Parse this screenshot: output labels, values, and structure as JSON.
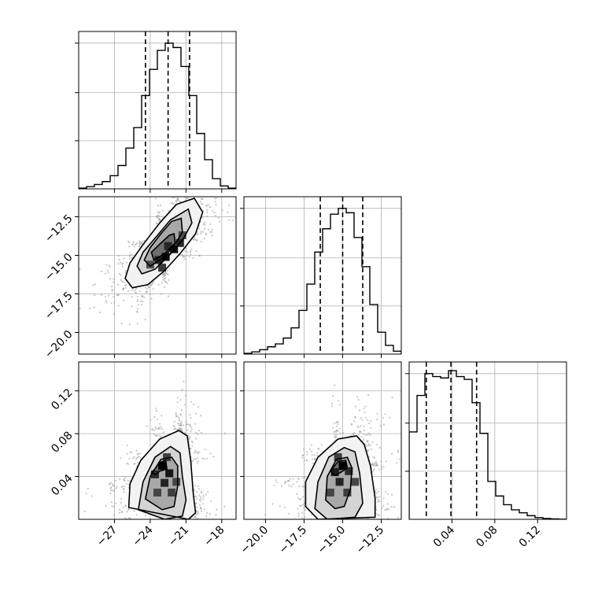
{
  "chart_data": {
    "type": "corner",
    "title": "",
    "parameters": [
      {
        "range": [
          -30,
          -16.8
        ],
        "ticks": [
          -27,
          -24,
          -21,
          -18
        ],
        "tick_labels": [
          "−27",
          "−24",
          "−21",
          "−18"
        ]
      },
      {
        "range": [
          -21.4,
          -11.2
        ],
        "ticks": [
          -20.0,
          -17.5,
          -15.0,
          -12.5
        ],
        "tick_labels": [
          "−20.0",
          "−17.5",
          "−15.0",
          "−12.5"
        ]
      },
      {
        "range": [
          0.0,
          0.147
        ],
        "ticks": [
          0.04,
          0.08,
          0.12
        ],
        "tick_labels": [
          "0.04",
          "0.08",
          "0.12"
        ]
      }
    ],
    "grid": true,
    "quantiles": [
      [
        -24.4,
        -22.5,
        -20.7
      ],
      [
        -16.45,
        -15.0,
        -13.7
      ],
      [
        0.016,
        0.039,
        0.063
      ]
    ],
    "histograms": [
      {
        "param": 0,
        "edges": [
          -30.0,
          -29.34,
          -28.68,
          -28.02,
          -27.36,
          -26.7,
          -26.04,
          -25.38,
          -24.72,
          -24.06,
          -23.4,
          -22.74,
          -22.08,
          -21.42,
          -20.76,
          -20.1,
          -19.44,
          -18.78,
          -18.12,
          -17.46,
          -16.8
        ],
        "counts": [
          0.005,
          0.015,
          0.03,
          0.05,
          0.09,
          0.16,
          0.28,
          0.42,
          0.64,
          0.82,
          0.95,
          1.0,
          0.97,
          0.84,
          0.64,
          0.38,
          0.2,
          0.07,
          0.02,
          0.005
        ]
      },
      {
        "param": 1,
        "edges": [
          -21.4,
          -20.89,
          -20.38,
          -19.87,
          -19.36,
          -18.85,
          -18.34,
          -17.83,
          -17.32,
          -16.81,
          -16.3,
          -15.79,
          -15.28,
          -14.77,
          -14.26,
          -13.75,
          -13.24,
          -12.73,
          -12.22,
          -11.71,
          -11.2
        ],
        "counts": [
          0.005,
          0.015,
          0.03,
          0.05,
          0.07,
          0.11,
          0.18,
          0.3,
          0.48,
          0.7,
          0.86,
          0.96,
          1.0,
          0.97,
          0.8,
          0.6,
          0.34,
          0.15,
          0.06,
          0.02
        ]
      },
      {
        "param": 2,
        "edges": [
          0.0,
          0.00735,
          0.0147,
          0.02205,
          0.0294,
          0.03675,
          0.0441,
          0.05145,
          0.0588,
          0.06615,
          0.0735,
          0.08085,
          0.0882,
          0.09555,
          0.1029,
          0.11025,
          0.1176,
          0.12495,
          0.1323,
          0.13965,
          0.147
        ],
        "counts": [
          0.6,
          0.85,
          1.0,
          0.98,
          0.97,
          1.02,
          0.98,
          0.96,
          0.8,
          0.59,
          0.26,
          0.16,
          0.1,
          0.065,
          0.045,
          0.025,
          0.012,
          0.006,
          0.003,
          0.001
        ]
      }
    ],
    "pairs": [
      {
        "x_param": 0,
        "y_param": 1,
        "density_peak": [
          -22.5,
          -15.0
        ],
        "density_cells": [
          {
            "x": -22.7,
            "y": -15.1,
            "level": 1.0
          },
          {
            "x": -22.0,
            "y": -14.6,
            "level": 0.9
          },
          {
            "x": -23.3,
            "y": -15.3,
            "level": 0.75
          },
          {
            "x": -21.5,
            "y": -14.2,
            "level": 0.7
          },
          {
            "x": -22.5,
            "y": -14.4,
            "level": 0.72
          },
          {
            "x": -23.0,
            "y": -15.8,
            "level": 0.6
          },
          {
            "x": -24.0,
            "y": -15.6,
            "level": 0.45
          },
          {
            "x": -21.3,
            "y": -13.7,
            "level": 0.45
          }
        ],
        "contours": [
          [
            [
              -20.3,
              -11.3
            ],
            [
              -19.6,
              -12.2
            ],
            [
              -20.2,
              -13.6
            ],
            [
              -21.4,
              -14.8
            ],
            [
              -22.8,
              -16.0
            ],
            [
              -24.2,
              -16.9
            ],
            [
              -25.5,
              -17.1
            ],
            [
              -26.1,
              -16.5
            ],
            [
              -25.7,
              -15.5
            ],
            [
              -24.6,
              -14.3
            ],
            [
              -23.2,
              -12.9
            ],
            [
              -21.8,
              -11.7
            ]
          ],
          [
            [
              -20.8,
              -12.0
            ],
            [
              -20.5,
              -12.9
            ],
            [
              -21.2,
              -13.9
            ],
            [
              -22.4,
              -15.0
            ],
            [
              -23.6,
              -15.9
            ],
            [
              -24.7,
              -16.2
            ],
            [
              -25.1,
              -15.7
            ],
            [
              -24.6,
              -14.8
            ],
            [
              -23.5,
              -13.8
            ],
            [
              -22.3,
              -12.7
            ]
          ],
          [
            [
              -21.4,
              -12.6
            ],
            [
              -21.3,
              -13.5
            ],
            [
              -22.0,
              -14.4
            ],
            [
              -23.0,
              -15.2
            ],
            [
              -24.0,
              -15.7
            ],
            [
              -24.5,
              -15.3
            ],
            [
              -24.0,
              -14.5
            ],
            [
              -23.1,
              -13.6
            ],
            [
              -22.2,
              -12.8
            ]
          ],
          [
            [
              -22.0,
              -13.6
            ],
            [
              -21.9,
              -14.2
            ],
            [
              -22.8,
              -14.9
            ],
            [
              -23.7,
              -15.3
            ],
            [
              -23.9,
              -14.8
            ],
            [
              -23.1,
              -14.2
            ],
            [
              -22.4,
              -13.7
            ]
          ]
        ]
      },
      {
        "x_param": 0,
        "y_param": 2,
        "density_peak": [
          -23.0,
          0.05
        ],
        "density_cells": [
          {
            "x": -23.0,
            "y": 0.05,
            "level": 1.0
          },
          {
            "x": -22.4,
            "y": 0.043,
            "level": 0.85
          },
          {
            "x": -23.6,
            "y": 0.042,
            "level": 0.7
          },
          {
            "x": -22.8,
            "y": 0.034,
            "level": 0.75
          },
          {
            "x": -22.2,
            "y": 0.025,
            "level": 0.55
          },
          {
            "x": -23.4,
            "y": 0.025,
            "level": 0.5
          },
          {
            "x": -22.6,
            "y": 0.058,
            "level": 0.55
          },
          {
            "x": -21.8,
            "y": 0.035,
            "level": 0.5
          }
        ],
        "contours": [
          [
            [
              -25.8,
              0.011
            ],
            [
              -25.7,
              0.033
            ],
            [
              -24.8,
              0.055
            ],
            [
              -23.2,
              0.075
            ],
            [
              -21.6,
              0.083
            ],
            [
              -20.9,
              0.078
            ],
            [
              -20.6,
              0.055
            ],
            [
              -20.4,
              0.025
            ],
            [
              -20.2,
              0.006
            ],
            [
              -20.8,
              0.0
            ]
          ],
          [
            [
              -25.0,
              0.009
            ],
            [
              -24.6,
              0.035
            ],
            [
              -23.6,
              0.058
            ],
            [
              -22.3,
              0.068
            ],
            [
              -21.5,
              0.062
            ],
            [
              -21.3,
              0.04
            ],
            [
              -21.0,
              0.018
            ],
            [
              -21.3,
              0.003
            ],
            [
              -22.8,
              0.0
            ]
          ],
          [
            [
              -24.4,
              0.019
            ],
            [
              -24.0,
              0.04
            ],
            [
              -23.1,
              0.056
            ],
            [
              -22.2,
              0.058
            ],
            [
              -21.7,
              0.05
            ],
            [
              -21.7,
              0.031
            ],
            [
              -22.0,
              0.012
            ],
            [
              -23.0,
              0.009
            ]
          ],
          [
            [
              -23.9,
              0.043
            ],
            [
              -23.2,
              0.053
            ],
            [
              -22.7,
              0.055
            ],
            [
              -22.6,
              0.047
            ],
            [
              -23.2,
              0.045
            ],
            [
              -23.5,
              0.042
            ]
          ]
        ]
      },
      {
        "x_param": 1,
        "y_param": 2,
        "density_peak": [
          -15.0,
          0.05
        ],
        "density_cells": [
          {
            "x": -15.0,
            "y": 0.05,
            "level": 1.0
          },
          {
            "x": -15.5,
            "y": 0.044,
            "level": 0.8
          },
          {
            "x": -14.6,
            "y": 0.045,
            "level": 0.7
          },
          {
            "x": -15.2,
            "y": 0.035,
            "level": 0.75
          },
          {
            "x": -14.7,
            "y": 0.025,
            "level": 0.55
          },
          {
            "x": -15.8,
            "y": 0.025,
            "level": 0.5
          },
          {
            "x": -15.3,
            "y": 0.058,
            "level": 0.55
          },
          {
            "x": -14.2,
            "y": 0.035,
            "level": 0.5
          }
        ],
        "contours": [
          [
            [
              -17.4,
              0.012
            ],
            [
              -17.4,
              0.035
            ],
            [
              -16.6,
              0.058
            ],
            [
              -15.3,
              0.075
            ],
            [
              -14.1,
              0.078
            ],
            [
              -13.6,
              0.07
            ],
            [
              -13.2,
              0.05
            ],
            [
              -12.9,
              0.02
            ],
            [
              -12.9,
              0.002
            ],
            [
              -16.6,
              0.0
            ]
          ],
          [
            [
              -16.8,
              0.01
            ],
            [
              -16.6,
              0.035
            ],
            [
              -15.9,
              0.058
            ],
            [
              -14.9,
              0.067
            ],
            [
              -14.2,
              0.063
            ],
            [
              -13.9,
              0.043
            ],
            [
              -13.7,
              0.015
            ],
            [
              -14.2,
              0.002
            ],
            [
              -16.0,
              0.0
            ]
          ],
          [
            [
              -16.1,
              0.018
            ],
            [
              -16.0,
              0.04
            ],
            [
              -15.4,
              0.056
            ],
            [
              -14.7,
              0.058
            ],
            [
              -14.4,
              0.048
            ],
            [
              -14.5,
              0.028
            ],
            [
              -14.9,
              0.012
            ],
            [
              -15.5,
              0.01
            ]
          ],
          [
            [
              -15.8,
              0.045
            ],
            [
              -15.3,
              0.054
            ],
            [
              -14.8,
              0.055
            ],
            [
              -14.7,
              0.048
            ],
            [
              -15.1,
              0.044
            ],
            [
              -15.5,
              0.041
            ]
          ]
        ]
      }
    ]
  },
  "colors": {
    "axes": "#000000",
    "grid": "#b0b0b0",
    "scatter": "#9a9a9a",
    "density_low": "#ffffff",
    "density_high": "#000000"
  }
}
